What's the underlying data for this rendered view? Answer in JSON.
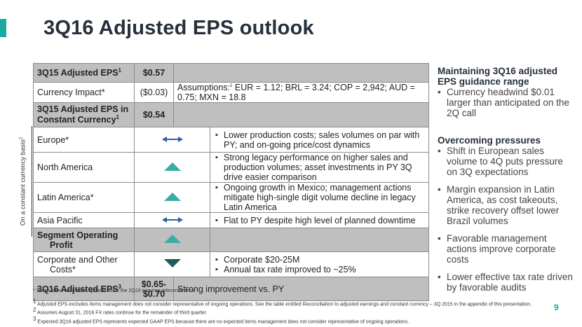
{
  "slide": {
    "title": "3Q16 Adjusted EPS outlook",
    "page_number": "9",
    "accent_color": "#1aa9a0",
    "side_label": "On a constant currency basis",
    "side_label_sup": "2"
  },
  "table": {
    "rows": [
      {
        "label": "3Q15 Adjusted EPS",
        "sup": "1",
        "value": "$0.57",
        "detail": ""
      },
      {
        "label": "Currency Impact*",
        "value": "($0.03)",
        "assumptions_label": "Assumptions:",
        "assumptions_sup": "2",
        "assumptions": "EUR = 1.12; BRL = 3.24; COP = 2,942; AUD = 0.75; MXN = 18.8"
      },
      {
        "label_line1": "3Q15 Adjusted EPS in",
        "label_line2": "Constant Currency",
        "sup": "1",
        "value": "$0.54"
      },
      {
        "label": "Europe*",
        "icon": "neutral-arrows-icon",
        "bullets": [
          "Lower production costs; sales volumes on par with PY; and on-going price/cost dynamics"
        ]
      },
      {
        "label": "North America",
        "icon": "up-triangle-icon",
        "bullets": [
          "Strong legacy performance on higher sales and production volumes; asset investments in PY 3Q drive easier comparison"
        ]
      },
      {
        "label": "Latin America*",
        "icon": "up-triangle-icon",
        "bullets": [
          "Ongoing growth in Mexico; management actions mitigate high-single digit volume decline in legacy Latin America"
        ]
      },
      {
        "label": "Asia Pacific",
        "icon": "neutral-arrows-icon",
        "bullets": [
          "Flat to PY despite high level of planned downtime"
        ]
      },
      {
        "label_line1": "Segment Operating",
        "label_line2": "Profit",
        "icon": "up-triangle-icon"
      },
      {
        "label_line1": "Corporate and Other",
        "label_line2": "Costs*",
        "icon": "down-triangle-icon",
        "bullets": [
          "Corporate $20-25M",
          "Annual tax rate improved to ~25%"
        ]
      },
      {
        "label": "3Q16 Adjusted EPS",
        "sup": "3",
        "value_line1": "$0.65-",
        "value_line2": "$0.70",
        "detail": "Strong improvement vs. PY"
      }
    ]
  },
  "colors": {
    "up": "#3aaca3",
    "down": "#1f5c59",
    "neutral": "#2e5fa8",
    "shaded_row": "#bfbfbf"
  },
  "sidebar": {
    "sections": [
      {
        "heading": "Maintaining 3Q16 adjusted EPS guidance range",
        "bullets": [
          "Currency headwind $0.01 larger than anticipated on the 2Q call"
        ]
      },
      {
        "heading": "Overcoming pressures",
        "bullets": [
          "Shift in European sales volume to 4Q puts pressure on 3Q expectations",
          "Margin expansion in Latin America, as cost takeouts, strike recovery offset lower Brazil volumes",
          "Favorable management actions improve corporate costs",
          "Lower effective tax rate driven by favorable audits"
        ]
      }
    ]
  },
  "footnotes": {
    "star": "* These items have been updated since the 2Q16 earnings teleconference",
    "notes": [
      {
        "sup": "1",
        "text": "Adjusted EPS excludes items management does not consider representative of ongoing operations. See the table entitled Reconciliation to adjusted earnings and constant currency – 3Q 2015 in the appendix of this presentation."
      },
      {
        "sup": "2",
        "text": "Assumes August 31, 2016 FX rates continue for the remainder of third quarter."
      },
      {
        "sup": "3",
        "text": "Expected 3Q16 adjusted EPS represents expected GAAP EPS because there are no expected items management does not consider representative of ongoing operations."
      }
    ]
  }
}
